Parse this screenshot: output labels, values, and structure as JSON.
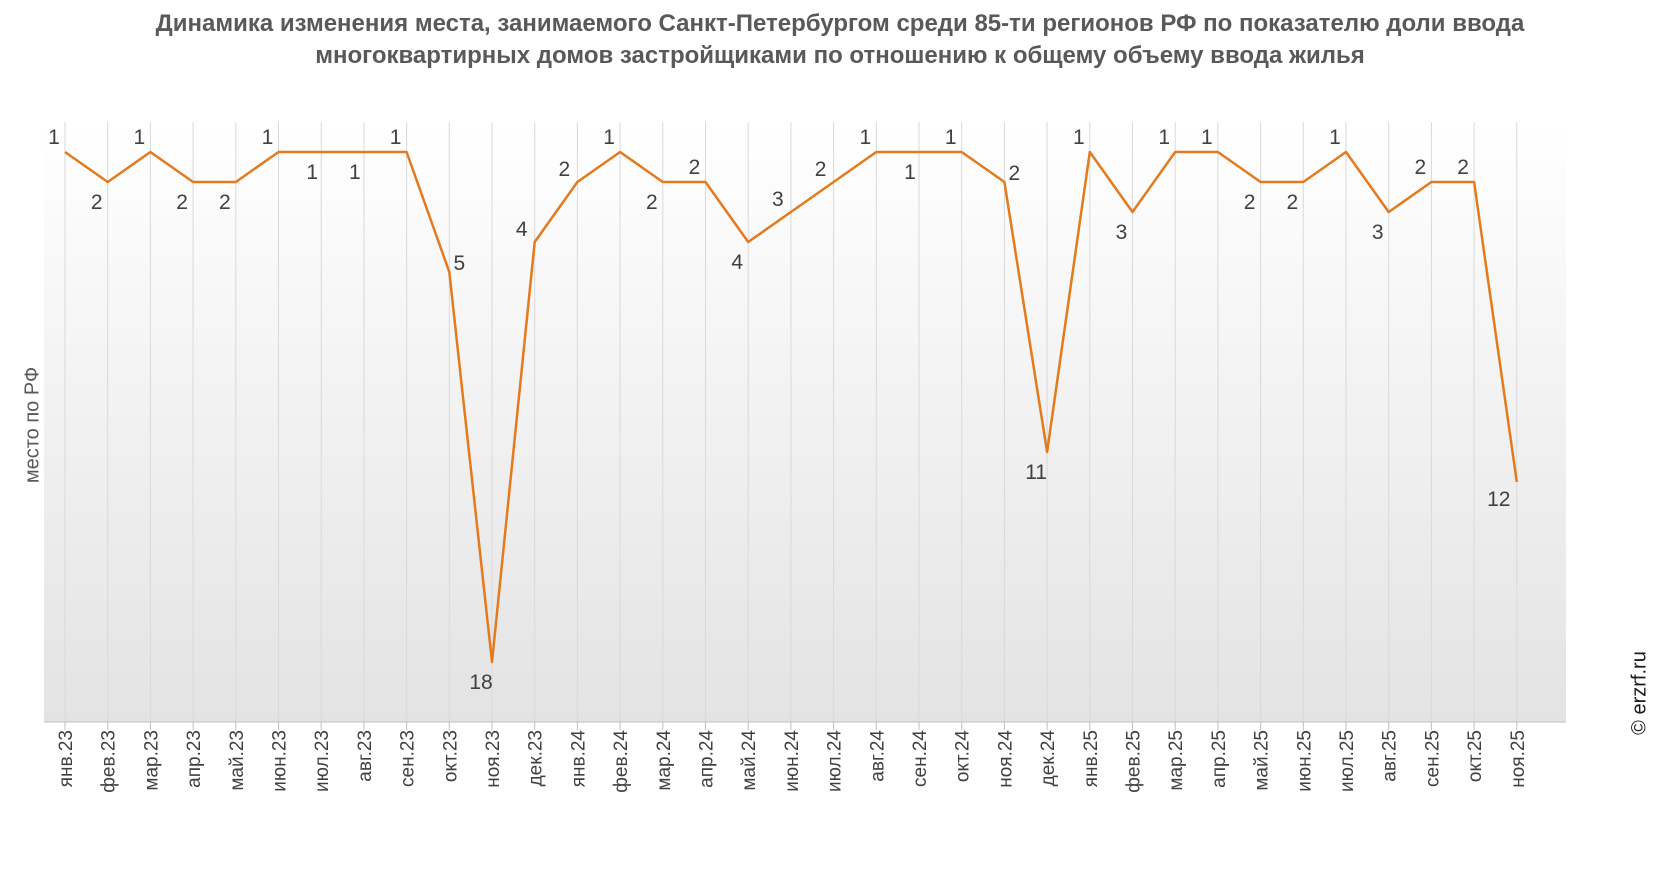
{
  "chart_data": {
    "type": "line",
    "title": "Динамика изменения места, занимаемого Санкт-Петербургом среди 85-ти регионов РФ по показателю доли ввода многоквартирных домов застройщиками по отношению к общему объему ввода жилья",
    "ylabel": "место по РФ",
    "xlabel": "",
    "y_inverted": true,
    "ylim": [
      1,
      20
    ],
    "grid": "vertical",
    "legend": "none",
    "categories": [
      "янв.23",
      "фев.23",
      "мар.23",
      "апр.23",
      "май.23",
      "июн.23",
      "июл.23",
      "авг.23",
      "сен.23",
      "окт.23",
      "ноя.23",
      "дек.23",
      "янв.24",
      "фев.24",
      "мар.24",
      "апр.24",
      "май.24",
      "июн.24",
      "июл.24",
      "авг.24",
      "сен.24",
      "окт.24",
      "ноя.24",
      "дек.24",
      "янв.25",
      "фев.25",
      "мар.25",
      "апр.25",
      "май.25",
      "июн.25",
      "июл.25",
      "авг.25",
      "сен.25",
      "окт.25",
      "ноя.25"
    ],
    "values": [
      1,
      2,
      1,
      2,
      2,
      1,
      1,
      1,
      1,
      5,
      18,
      4,
      2,
      1,
      2,
      2,
      4,
      3,
      2,
      1,
      1,
      1,
      2,
      11,
      1,
      3,
      1,
      1,
      2,
      2,
      1,
      3,
      2,
      2,
      12
    ],
    "labeled_points": [
      0,
      1,
      2,
      3,
      4,
      5,
      6,
      7,
      8,
      9,
      10,
      11,
      12,
      13,
      14,
      15,
      16,
      17,
      18,
      19,
      20,
      21,
      22,
      23,
      24,
      25,
      26,
      27,
      28,
      29,
      30,
      31,
      32,
      33,
      34
    ],
    "colors": {
      "line": "#E47A1E",
      "grid": "#d9d9d9",
      "text": "#404040"
    }
  },
  "credit": "© erzrf.ru"
}
